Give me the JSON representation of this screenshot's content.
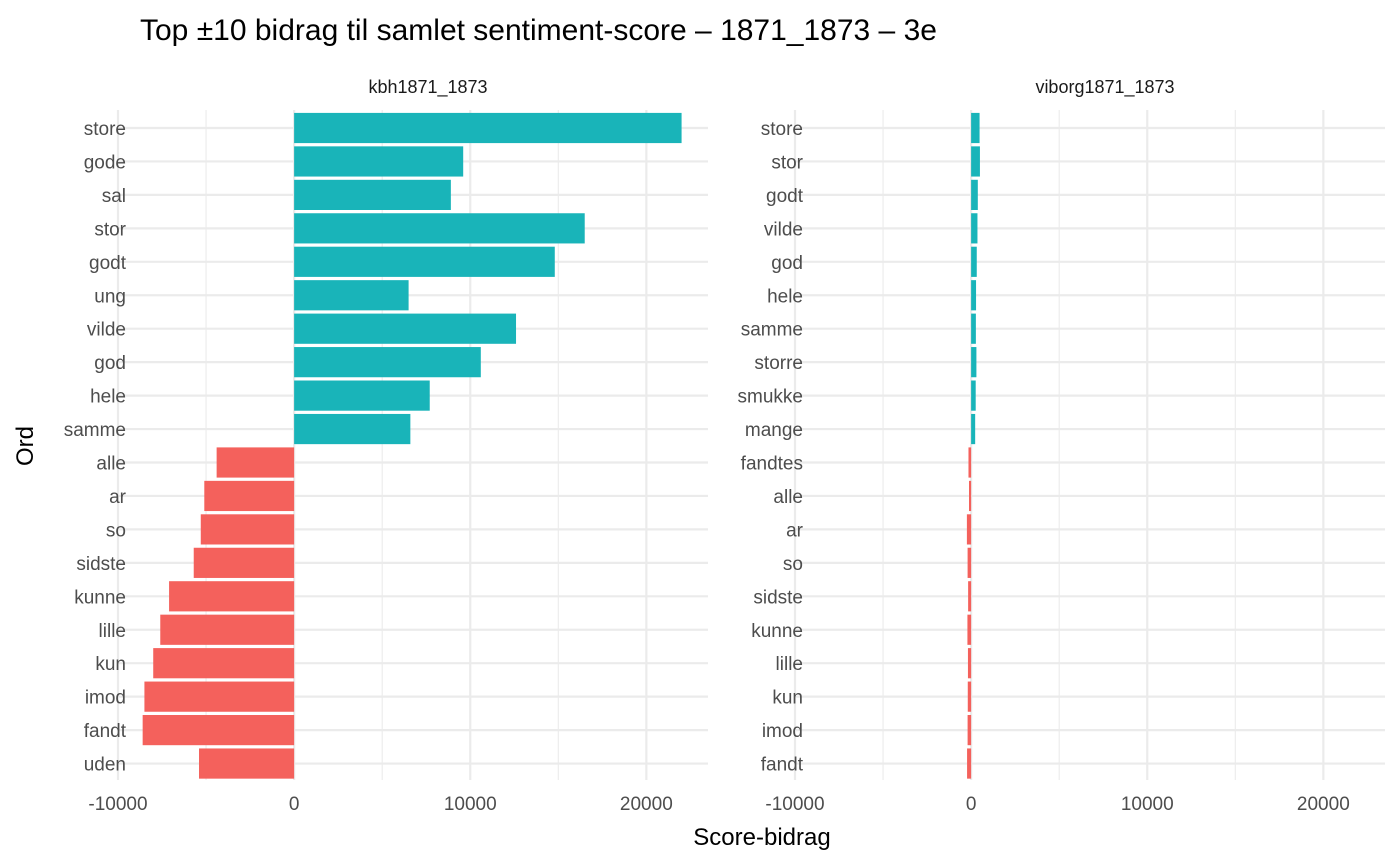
{
  "chart_data": {
    "type": "bar",
    "orientation": "horizontal",
    "title": "Top ±10 bidrag til samlet sentiment-score – 1871_1873 – 3e",
    "xlabel": "Score-bidrag",
    "ylabel": "Ord",
    "xlim": [
      -10000,
      23500
    ],
    "xticks": [
      -10000,
      0,
      10000,
      20000
    ],
    "xtick_labels": [
      "-10000",
      "0",
      "10000",
      "20000"
    ],
    "grid": true,
    "legend": "none",
    "colors": {
      "positive": "#19B4B9",
      "negative": "#F4615C"
    },
    "panels": [
      {
        "label": "kbh1871_1873",
        "categories": [
          "store",
          "gode",
          "sal",
          "stor",
          "godt",
          "ung",
          "vilde",
          "god",
          "hele",
          "samme",
          "alle",
          "ar",
          "so",
          "sidste",
          "kunne",
          "lille",
          "kun",
          "imod",
          "fandt",
          "uden"
        ],
        "values": [
          22000,
          9600,
          8900,
          16500,
          14800,
          6500,
          12600,
          10600,
          7700,
          6600,
          -4400,
          -5100,
          -5300,
          -5700,
          -7100,
          -7600,
          -8000,
          -8500,
          -8600,
          -5400
        ]
      },
      {
        "label": "viborg1871_1873",
        "categories": [
          "store",
          "stor",
          "godt",
          "vilde",
          "god",
          "hele",
          "samme",
          "storre",
          "smukke",
          "mange",
          "fandtes",
          "alle",
          "ar",
          "so",
          "sidste",
          "kunne",
          "lille",
          "kun",
          "imod",
          "fandt"
        ],
        "values": [
          480,
          500,
          380,
          360,
          320,
          280,
          270,
          300,
          260,
          230,
          -150,
          -120,
          -240,
          -200,
          -170,
          -210,
          -180,
          -190,
          -200,
          -230
        ]
      }
    ]
  }
}
